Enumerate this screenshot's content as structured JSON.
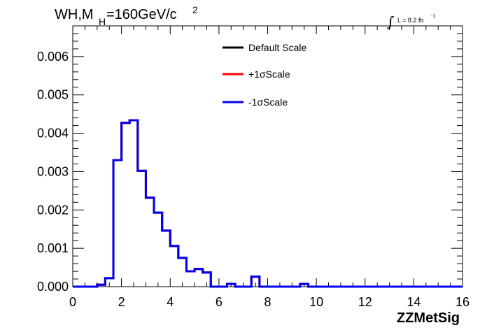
{
  "header": {
    "title_main": "WH,M",
    "title_sub": "H",
    "title_rest": "=160GeV/c",
    "title_sup": "2",
    "lumi_integral": "∫",
    "lumi_text": "L = 8.2 fb",
    "lumi_sup": "-1"
  },
  "chart_data": {
    "type": "line",
    "xlabel": "ZZMetSig",
    "ylabel": "",
    "xlim": [
      0,
      16
    ],
    "ylim": [
      0,
      0.0068
    ],
    "x_ticks": [
      "0",
      "2",
      "4",
      "6",
      "8",
      "10",
      "12",
      "14",
      "16"
    ],
    "y_ticks": [
      "0.000",
      "0.001",
      "0.002",
      "0.003",
      "0.004",
      "0.005",
      "0.006"
    ],
    "bin_edges": [
      0,
      0.333,
      0.667,
      1.0,
      1.333,
      1.667,
      2.0,
      2.333,
      2.667,
      3.0,
      3.333,
      3.667,
      4.0,
      4.333,
      4.667,
      5.0,
      5.333,
      5.667,
      6.0,
      6.333,
      6.667,
      7.0,
      7.333,
      7.667,
      8.0,
      8.333,
      8.667,
      9.0,
      9.333,
      9.667,
      10.0,
      10.333,
      10.667,
      11.0,
      11.333,
      11.667,
      12.0,
      12.333,
      12.667,
      13.0,
      13.333,
      13.667,
      14.0,
      14.333,
      14.667,
      15.0,
      15.333,
      15.667,
      16.0
    ],
    "series": [
      {
        "name": "Default Scale",
        "color": "#000000",
        "values": [
          0,
          0,
          0,
          5e-05,
          0.00022,
          0.0033,
          0.00427,
          0.00434,
          0.00302,
          0.00232,
          0.00193,
          0.00146,
          0.00106,
          0.00075,
          0.0004,
          0.00046,
          0.00037,
          0,
          0,
          7e-05,
          0,
          0,
          0.00026,
          0,
          0,
          0,
          0,
          0,
          7e-05,
          0,
          0,
          0,
          0,
          0,
          0,
          0,
          0,
          0,
          0,
          0,
          0,
          0,
          0,
          0,
          0,
          0,
          0,
          0
        ]
      },
      {
        "name": "+1σScale",
        "color": "#ff0000",
        "values": [
          0,
          0,
          0,
          5e-05,
          0.00022,
          0.0033,
          0.00427,
          0.00434,
          0.00302,
          0.00232,
          0.00193,
          0.00146,
          0.00106,
          0.00075,
          0.0004,
          0.00046,
          0.00037,
          0,
          0,
          7e-05,
          0,
          0,
          0.00026,
          0,
          0,
          0,
          0,
          0,
          7e-05,
          0,
          0,
          0,
          0,
          0,
          0,
          0,
          0,
          0,
          0,
          0,
          0,
          0,
          0,
          0,
          0,
          0,
          0,
          0
        ]
      },
      {
        "name": "-1σScale",
        "color": "#0000ee",
        "values": [
          0,
          0,
          0,
          5e-05,
          0.00022,
          0.0033,
          0.00427,
          0.00434,
          0.00302,
          0.00232,
          0.00193,
          0.00146,
          0.00106,
          0.00075,
          0.0004,
          0.00046,
          0.00037,
          0,
          0,
          7e-05,
          0,
          0,
          0.00026,
          0,
          0,
          0,
          0,
          0,
          7e-05,
          0,
          0,
          0,
          0,
          0,
          0,
          0,
          0,
          0,
          0,
          0,
          0,
          0,
          0,
          0,
          0,
          0,
          0,
          0
        ]
      }
    ],
    "legend_position": "top-right",
    "grid": false
  }
}
